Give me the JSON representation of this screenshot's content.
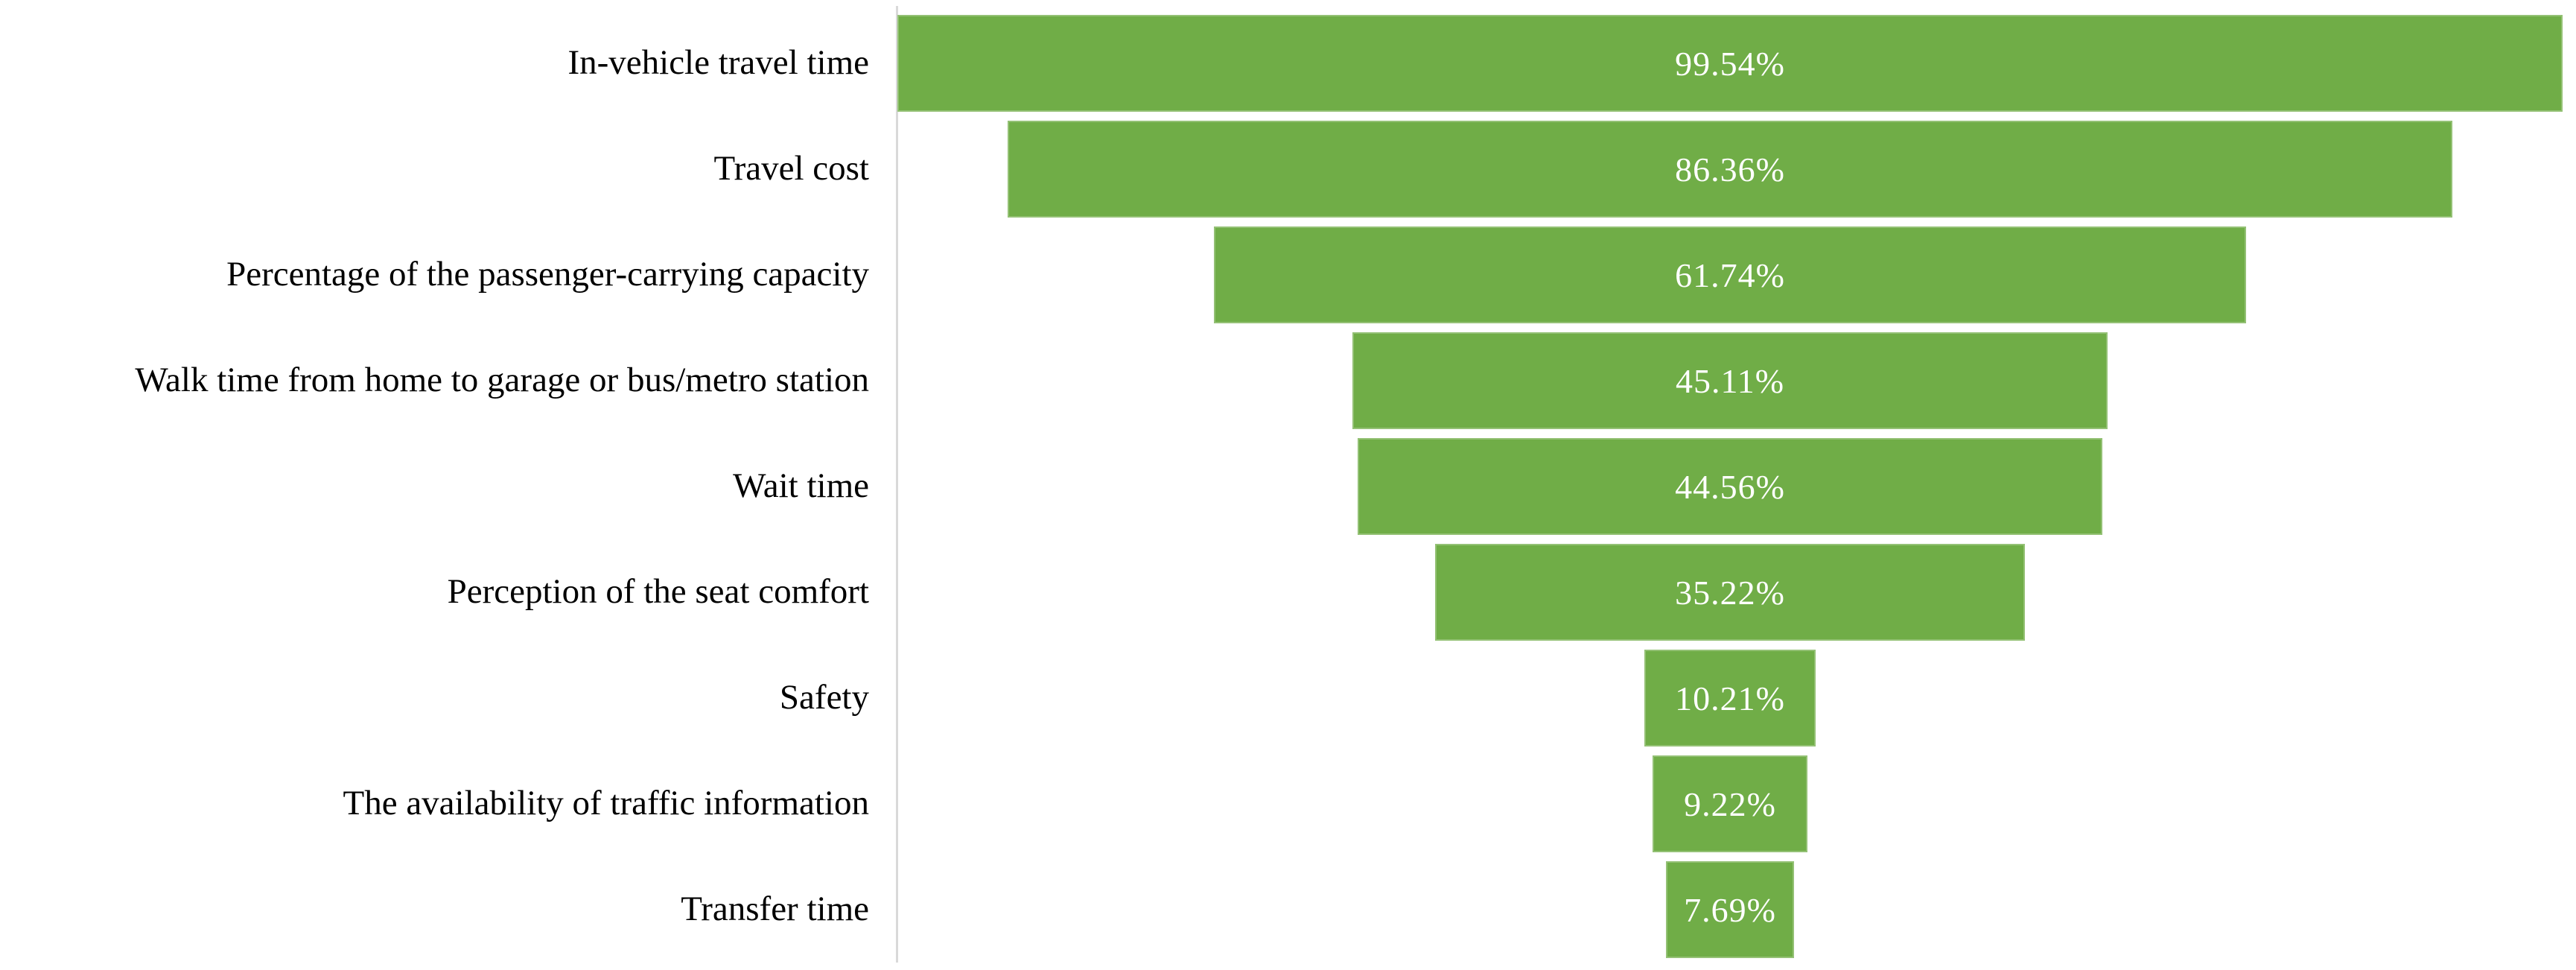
{
  "chart_data": {
    "type": "bar",
    "variant": "horizontal-centered-funnel",
    "title": "",
    "xlabel": "",
    "ylabel": "",
    "grid": false,
    "legend": false,
    "orientation": "horizontal",
    "bars_centered": true,
    "widest_bar_fills_plot": true,
    "categories": [
      "In-vehicle travel time",
      "Travel cost",
      "Percentage of the passenger-carrying capacity",
      "Walk time from home to garage or bus/metro station",
      "Wait time",
      "Perception of the seat comfort",
      "Safety",
      "The availability of traffic information",
      "Transfer time"
    ],
    "values": [
      99.54,
      86.36,
      61.74,
      45.11,
      44.56,
      35.22,
      10.21,
      9.22,
      7.69
    ],
    "value_labels": [
      "99.54%",
      "86.36%",
      "61.74%",
      "45.11%",
      "44.56%",
      "35.22%",
      "10.21%",
      "9.22%",
      "7.69%"
    ],
    "colors": {
      "bar_fill": "#70AD47",
      "value_text": "#FFFFFF",
      "category_text": "#000000",
      "axis_line": "#D9D9D9",
      "background": "#FFFFFF"
    }
  }
}
